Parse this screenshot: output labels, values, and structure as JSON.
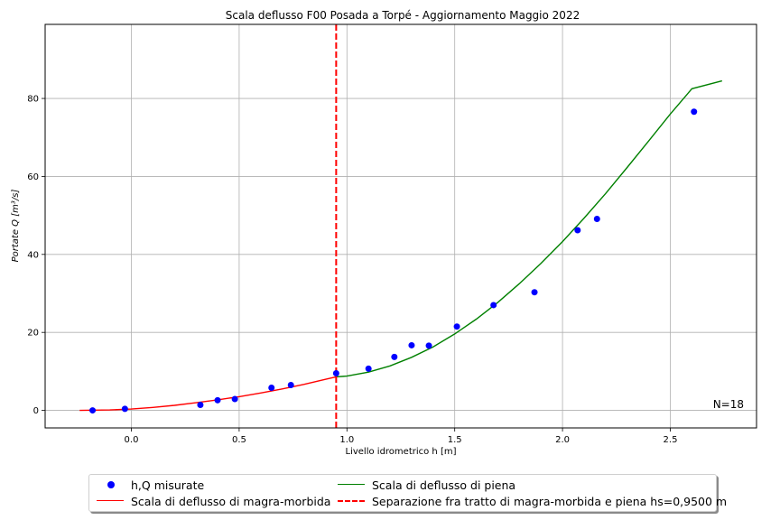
{
  "chart_data": {
    "type": "scatter",
    "title": "Scala deflusso F00 Posada a Torpé - Aggiornamento Maggio 2022",
    "xlabel": "Livello idrometrico h [m]",
    "ylabel": "Portate   Q   [m³/s]",
    "xlim": [
      -0.4,
      2.9
    ],
    "ylim": [
      -4.5,
      99
    ],
    "xticks": [
      0.0,
      0.5,
      1.0,
      1.5,
      2.0,
      2.5
    ],
    "xtick_labels": [
      "0.0",
      "0.5",
      "1.0",
      "1.5",
      "2.0",
      "2.5"
    ],
    "yticks": [
      0,
      20,
      40,
      60,
      80
    ],
    "ytick_labels": [
      "0",
      "20",
      "40",
      "60",
      "80"
    ],
    "grid": true,
    "annotation": "N=18",
    "series": [
      {
        "name": "h,Q misurate",
        "kind": "scatter",
        "color": "#0000ff",
        "x": [
          -0.18,
          -0.03,
          0.32,
          0.4,
          0.48,
          0.65,
          0.74,
          0.95,
          1.1,
          1.22,
          1.3,
          1.38,
          1.51,
          1.68,
          1.87,
          2.07,
          2.16,
          2.61
        ],
        "y": [
          0.0,
          0.4,
          1.4,
          2.6,
          2.9,
          5.8,
          6.5,
          9.5,
          10.7,
          13.7,
          16.7,
          16.6,
          21.5,
          27.0,
          30.3,
          46.2,
          49.1,
          76.6
        ]
      },
      {
        "name": "Scala di deflusso di magra-morbida",
        "kind": "line",
        "color": "#ff0000",
        "x": [
          -0.24,
          -0.1,
          0.0,
          0.1,
          0.2,
          0.3,
          0.4,
          0.5,
          0.6,
          0.7,
          0.8,
          0.9,
          0.95
        ],
        "y": [
          0.0,
          0.1,
          0.35,
          0.75,
          1.3,
          1.95,
          2.7,
          3.5,
          4.45,
          5.5,
          6.65,
          7.95,
          8.6
        ]
      },
      {
        "name": "Scala di deflusso di piena",
        "kind": "line",
        "color": "#008000",
        "x": [
          0.95,
          1.0,
          1.1,
          1.2,
          1.3,
          1.4,
          1.5,
          1.6,
          1.7,
          1.8,
          1.9,
          2.0,
          2.1,
          2.2,
          2.3,
          2.4,
          2.5,
          2.6,
          2.74
        ],
        "y": [
          8.6,
          8.8,
          9.8,
          11.4,
          13.6,
          16.3,
          19.6,
          23.4,
          27.7,
          32.5,
          37.7,
          43.3,
          49.3,
          55.6,
          62.3,
          69.1,
          76.0,
          82.5,
          84.5
        ]
      },
      {
        "name": "Separazione fra tratto di magra-morbida e piena hs=0,9500 m",
        "kind": "vline",
        "color": "#ff0000",
        "x": 0.95
      }
    ],
    "legend_position": "bottom-center"
  }
}
